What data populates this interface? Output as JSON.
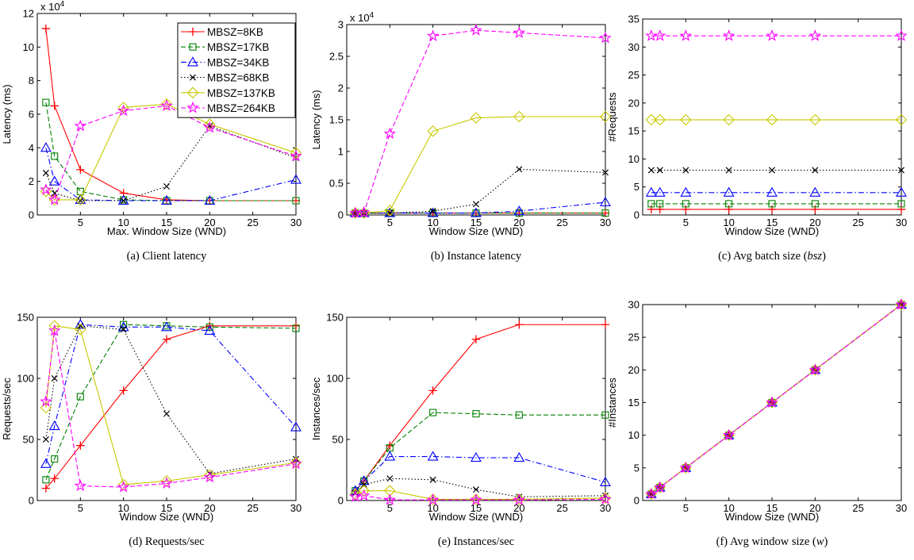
{
  "legend": [
    "MBSZ=8KB",
    "MBSZ=17KB",
    "MBSZ=34KB",
    "MBSZ=68KB",
    "MBSZ=137KB",
    "MBSZ=264KB"
  ],
  "series_styles": [
    {
      "color": "#ff0000",
      "dash": "solid",
      "marker": "plus"
    },
    {
      "color": "#008000",
      "dash": "dashed",
      "marker": "square"
    },
    {
      "color": "#0000ff",
      "dash": "dashdot",
      "marker": "triangle"
    },
    {
      "color": "#000000",
      "dash": "dotted",
      "marker": "x"
    },
    {
      "color": "#c8c800",
      "dash": "solid",
      "marker": "diamond"
    },
    {
      "color": "#ff00ff",
      "dash": "dashed",
      "marker": "star"
    }
  ],
  "chart_data": [
    {
      "type": "line",
      "caption": "(a) Client latency",
      "xlabel": "Max. Window Size (WND)",
      "ylabel": "Latency (ms)",
      "y_multiplier": "x 10^4",
      "xlim": [
        0,
        30
      ],
      "ylim": [
        0,
        12
      ],
      "xticks": [
        5,
        10,
        15,
        20,
        25,
        30
      ],
      "yticks": [
        0,
        2,
        4,
        6,
        8,
        10,
        12
      ],
      "legend_position": "top-right",
      "x": [
        1,
        2,
        5,
        10,
        15,
        20,
        30
      ],
      "series": [
        {
          "name": "MBSZ=8KB",
          "values": [
            11.1,
            6.5,
            2.7,
            1.3,
            0.9,
            0.85,
            0.85
          ]
        },
        {
          "name": "MBSZ=17KB",
          "values": [
            6.7,
            3.5,
            1.4,
            0.9,
            0.85,
            0.85,
            0.85
          ]
        },
        {
          "name": "MBSZ=34KB",
          "values": [
            4.0,
            2.0,
            0.9,
            0.85,
            0.85,
            0.85,
            2.1
          ]
        },
        {
          "name": "MBSZ=68KB",
          "values": [
            2.5,
            1.3,
            0.85,
            0.85,
            1.7,
            5.3,
            3.4
          ]
        },
        {
          "name": "MBSZ=137KB",
          "values": [
            1.4,
            0.9,
            0.9,
            6.4,
            6.6,
            5.4,
            3.7
          ]
        },
        {
          "name": "MBSZ=264KB",
          "values": [
            1.5,
            0.9,
            5.3,
            6.2,
            6.5,
            5.2,
            3.5
          ]
        }
      ]
    },
    {
      "type": "line",
      "caption": "(b) Instance latency",
      "xlabel": "Window Size (WND)",
      "ylabel": "Latency (ms)",
      "y_multiplier": "x 10^4",
      "xlim": [
        0,
        30
      ],
      "ylim": [
        0,
        3
      ],
      "xticks": [
        5,
        10,
        15,
        20,
        25,
        30
      ],
      "yticks": [
        0,
        0.5,
        1,
        1.5,
        2,
        2.5,
        3
      ],
      "x": [
        1,
        2,
        5,
        10,
        15,
        20,
        30
      ],
      "series": [
        {
          "name": "MBSZ=8KB",
          "values": [
            0.03,
            0.03,
            0.03,
            0.03,
            0.03,
            0.03,
            0.03
          ]
        },
        {
          "name": "MBSZ=17KB",
          "values": [
            0.03,
            0.03,
            0.03,
            0.03,
            0.03,
            0.03,
            0.03
          ]
        },
        {
          "name": "MBSZ=34KB",
          "values": [
            0.03,
            0.03,
            0.03,
            0.03,
            0.03,
            0.06,
            0.2
          ]
        },
        {
          "name": "MBSZ=68KB",
          "values": [
            0.03,
            0.03,
            0.03,
            0.06,
            0.17,
            0.72,
            0.67
          ]
        },
        {
          "name": "MBSZ=137KB",
          "values": [
            0.03,
            0.03,
            0.07,
            1.32,
            1.53,
            1.55,
            1.55
          ]
        },
        {
          "name": "MBSZ=264KB",
          "values": [
            0.03,
            0.04,
            1.28,
            2.82,
            2.91,
            2.87,
            2.79
          ]
        }
      ]
    },
    {
      "type": "line",
      "caption": "(c) Avg batch size (bsz)",
      "xlabel": "Window Size (WND)",
      "ylabel": "#Requests",
      "xlim": [
        0,
        30
      ],
      "ylim": [
        0,
        35
      ],
      "xticks": [
        5,
        10,
        15,
        20,
        25,
        30
      ],
      "yticks": [
        0,
        5,
        10,
        15,
        20,
        25,
        30,
        35
      ],
      "x": [
        1,
        2,
        5,
        10,
        15,
        20,
        30
      ],
      "series": [
        {
          "name": "MBSZ=8KB",
          "values": [
            1,
            1,
            1,
            1,
            1,
            1,
            1
          ]
        },
        {
          "name": "MBSZ=17KB",
          "values": [
            2,
            2,
            2,
            2,
            2,
            2,
            2
          ]
        },
        {
          "name": "MBSZ=34KB",
          "values": [
            4,
            4,
            4,
            4,
            4,
            4,
            4
          ]
        },
        {
          "name": "MBSZ=68KB",
          "values": [
            8,
            8,
            8,
            8,
            8,
            8,
            8
          ]
        },
        {
          "name": "MBSZ=137KB",
          "values": [
            17,
            17,
            17,
            17,
            17,
            17,
            17
          ]
        },
        {
          "name": "MBSZ=264KB",
          "values": [
            32,
            32,
            32,
            32,
            32,
            32,
            32
          ]
        }
      ]
    },
    {
      "type": "line",
      "caption": "(d) Requests/sec",
      "xlabel": "Window Size (WND)",
      "ylabel": "Requests/sec",
      "xlim": [
        0,
        30
      ],
      "ylim": [
        0,
        150
      ],
      "xticks": [
        5,
        10,
        15,
        20,
        25,
        30
      ],
      "yticks": [
        0,
        50,
        100,
        150
      ],
      "x": [
        1,
        2,
        5,
        10,
        15,
        20,
        30
      ],
      "series": [
        {
          "name": "MBSZ=8KB",
          "values": [
            10,
            18,
            45,
            90,
            132,
            143,
            143
          ]
        },
        {
          "name": "MBSZ=17KB",
          "values": [
            17,
            34,
            85,
            144,
            143,
            142,
            141
          ]
        },
        {
          "name": "MBSZ=34KB",
          "values": [
            30,
            61,
            144,
            142,
            142,
            139,
            60
          ]
        },
        {
          "name": "MBSZ=68KB",
          "values": [
            50,
            100,
            143,
            140,
            71,
            22,
            34
          ]
        },
        {
          "name": "MBSZ=137KB",
          "values": [
            76,
            143,
            140,
            13,
            16,
            21,
            31
          ]
        },
        {
          "name": "MBSZ=264KB",
          "values": [
            81,
            139,
            12,
            11,
            14,
            19,
            30
          ]
        }
      ]
    },
    {
      "type": "line",
      "caption": "(e) Instances/sec",
      "xlabel": "Window Size (WND)",
      "ylabel": "Instances/sec",
      "xlim": [
        0,
        30
      ],
      "ylim": [
        0,
        150
      ],
      "xticks": [
        5,
        10,
        15,
        20,
        25,
        30
      ],
      "yticks": [
        0,
        50,
        100,
        150
      ],
      "x": [
        1,
        2,
        5,
        10,
        15,
        20,
        30
      ],
      "series": [
        {
          "name": "MBSZ=8KB",
          "values": [
            8,
            16,
            45,
            90,
            132,
            144,
            144
          ]
        },
        {
          "name": "MBSZ=17KB",
          "values": [
            8,
            16,
            43,
            72,
            71,
            70,
            70
          ]
        },
        {
          "name": "MBSZ=34KB",
          "values": [
            8,
            16,
            36,
            36,
            35,
            35,
            15
          ]
        },
        {
          "name": "MBSZ=68KB",
          "values": [
            6,
            13,
            18,
            17,
            9,
            3,
            4
          ]
        },
        {
          "name": "MBSZ=137KB",
          "values": [
            5,
            8,
            8,
            1,
            1,
            1,
            2
          ]
        },
        {
          "name": "MBSZ=264KB",
          "values": [
            3,
            4,
            0.5,
            0.5,
            0.5,
            0.5,
            1
          ]
        }
      ]
    },
    {
      "type": "line",
      "caption": "(f) Avg window size (w)",
      "xlabel": "Window Size (WND)",
      "ylabel": "#Instances",
      "xlim": [
        0,
        30
      ],
      "ylim": [
        0,
        30
      ],
      "xticks": [
        5,
        10,
        15,
        20,
        25,
        30
      ],
      "yticks": [
        0,
        5,
        10,
        15,
        20,
        25,
        30
      ],
      "x": [
        1,
        2,
        5,
        10,
        15,
        20,
        30
      ],
      "series": [
        {
          "name": "MBSZ=8KB",
          "values": [
            1,
            2,
            5,
            10,
            15,
            20,
            30
          ]
        },
        {
          "name": "MBSZ=17KB",
          "values": [
            1,
            2,
            5,
            10,
            15,
            20,
            30
          ]
        },
        {
          "name": "MBSZ=34KB",
          "values": [
            1,
            2,
            5,
            10,
            15,
            20,
            30
          ]
        },
        {
          "name": "MBSZ=68KB",
          "values": [
            1,
            2,
            5,
            10,
            15,
            20,
            30
          ]
        },
        {
          "name": "MBSZ=137KB",
          "values": [
            1,
            2,
            5,
            10,
            15,
            20,
            30
          ]
        },
        {
          "name": "MBSZ=264KB",
          "values": [
            1,
            2,
            5,
            10,
            15,
            20,
            30
          ]
        }
      ]
    }
  ]
}
